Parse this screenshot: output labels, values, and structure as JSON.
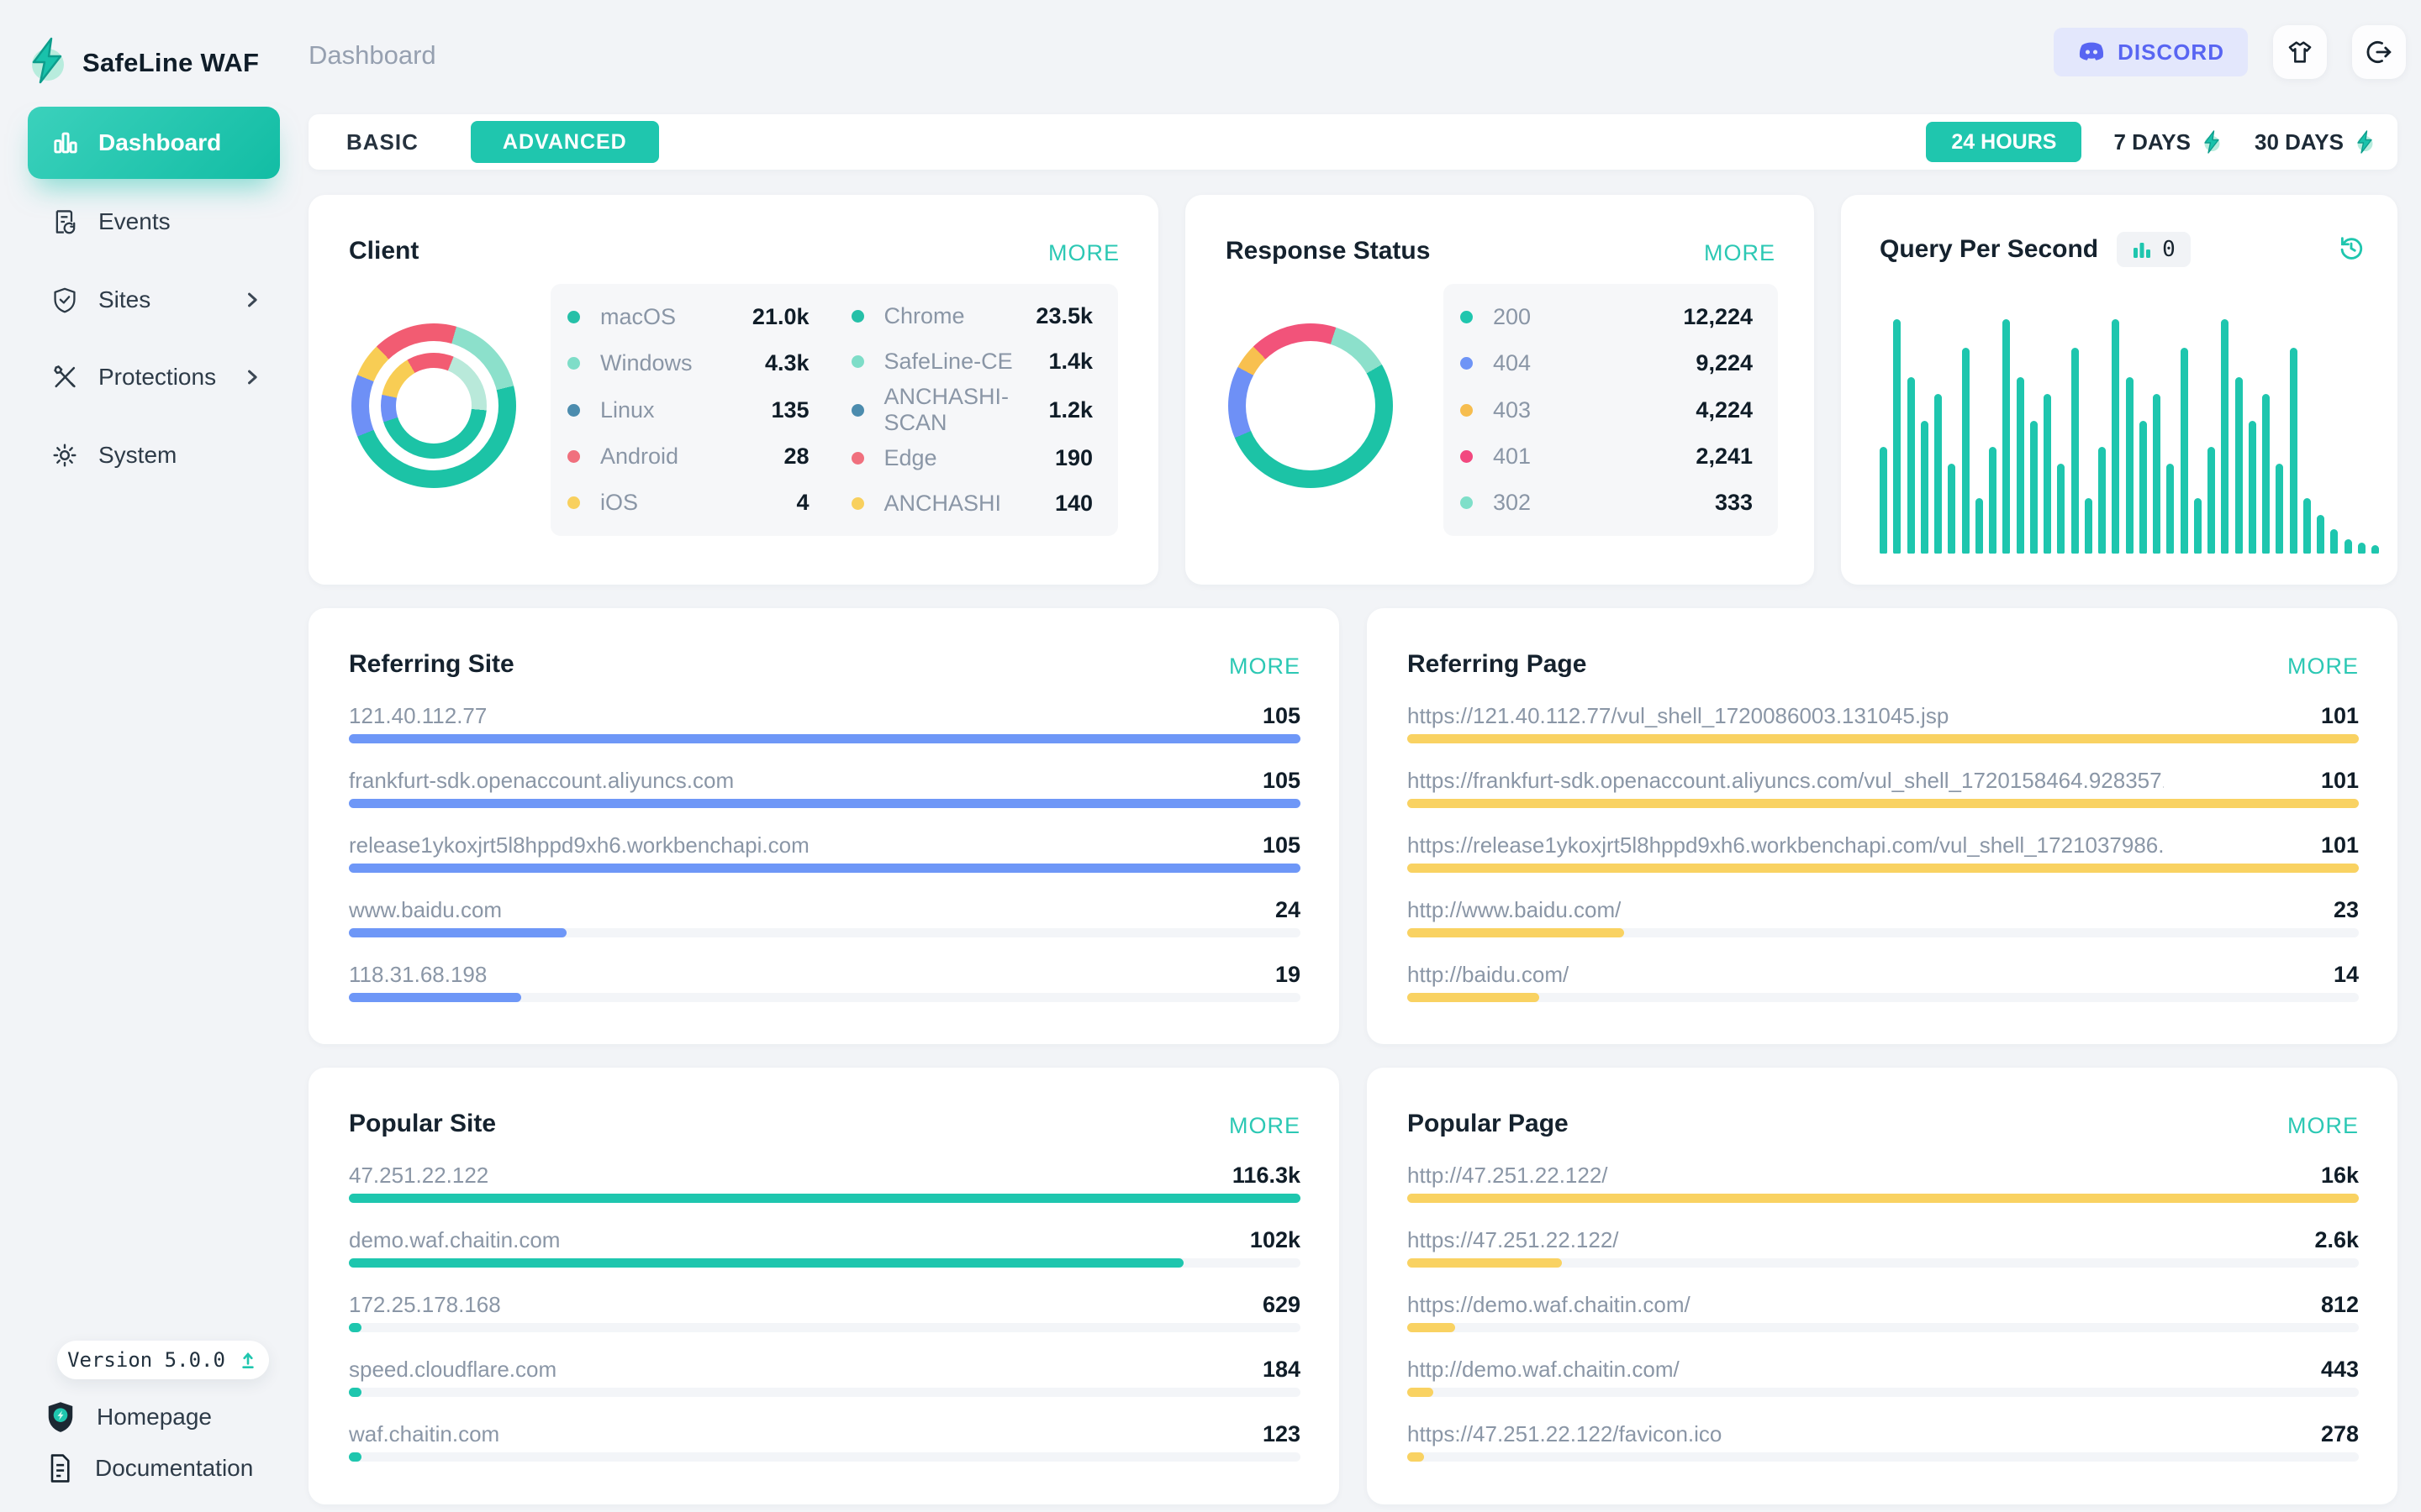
{
  "brand": {
    "name": "SafeLine WAF"
  },
  "header": {
    "page_title": "Dashboard",
    "discord_label": "DISCORD"
  },
  "sidebar": {
    "items": [
      {
        "label": "Dashboard",
        "icon": "bar-chart",
        "active": true,
        "chevron": false
      },
      {
        "label": "Events",
        "icon": "events-doc",
        "active": false,
        "chevron": false
      },
      {
        "label": "Sites",
        "icon": "shield-check",
        "active": false,
        "chevron": true
      },
      {
        "label": "Protections",
        "icon": "tools",
        "active": false,
        "chevron": true
      },
      {
        "label": "System",
        "icon": "gear",
        "active": false,
        "chevron": false
      }
    ],
    "version_label": "Version 5.0.0",
    "links": [
      {
        "label": "Homepage",
        "icon": "shield-badge"
      },
      {
        "label": "Documentation",
        "icon": "document"
      }
    ]
  },
  "toolbar": {
    "tab_basic": "BASIC",
    "tab_advanced": "ADVANCED",
    "ranges": [
      {
        "label": "24 HOURS",
        "active": true,
        "bolt": false
      },
      {
        "label": "7 DAYS",
        "active": false,
        "bolt": true
      },
      {
        "label": "30 DAYS",
        "active": false,
        "bolt": true
      }
    ]
  },
  "client_card": {
    "title": "Client",
    "more": "MORE",
    "legend_left": [
      {
        "label": "macOS",
        "value": "21.0k",
        "color": "#25c0a8"
      },
      {
        "label": "Windows",
        "value": "4.3k",
        "color": "#7eddc8"
      },
      {
        "label": "Linux",
        "value": "135",
        "color": "#4c8cae"
      },
      {
        "label": "Android",
        "value": "28",
        "color": "#f0707e"
      },
      {
        "label": "iOS",
        "value": "4",
        "color": "#f8d05e"
      }
    ],
    "legend_right": [
      {
        "label": "Chrome",
        "value": "23.5k",
        "color": "#25c0a8"
      },
      {
        "label": "SafeLine-CE",
        "value": "1.4k",
        "color": "#7eddc8"
      },
      {
        "label": "ANCHASHI-SCAN",
        "value": "1.2k",
        "color": "#4c8cae"
      },
      {
        "label": "Edge",
        "value": "190",
        "color": "#f0707e"
      },
      {
        "label": "ANCHASHI",
        "value": "140",
        "color": "#f8d05e"
      }
    ],
    "outer_segments": [
      {
        "c": "#f25c72",
        "a": 0,
        "b": 16
      },
      {
        "c": "#8ce0cb",
        "a": 16,
        "b": 76
      },
      {
        "c": "#1cc3a6",
        "a": 76,
        "b": 248
      },
      {
        "c": "#6e90f6",
        "a": 248,
        "b": 292
      },
      {
        "c": "#f8cd54",
        "a": 292,
        "b": 316
      },
      {
        "c": "#f25c72",
        "a": 316,
        "b": 360
      }
    ],
    "inner_segments": [
      {
        "c": "#f25c72",
        "a": 0,
        "b": 22
      },
      {
        "c": "#b9e9da",
        "a": 22,
        "b": 95
      },
      {
        "c": "#1cc3a6",
        "a": 95,
        "b": 252
      },
      {
        "c": "#6e90f6",
        "a": 252,
        "b": 282
      },
      {
        "c": "#f8cd54",
        "a": 282,
        "b": 330
      },
      {
        "c": "#f25c72",
        "a": 330,
        "b": 360
      }
    ]
  },
  "response_card": {
    "title": "Response Status",
    "more": "MORE",
    "legend": [
      {
        "label": "200",
        "value": "12,224",
        "color": "#1fc6ae"
      },
      {
        "label": "404",
        "value": "9,224",
        "color": "#6e94f6"
      },
      {
        "label": "403",
        "value": "4,224",
        "color": "#f6bd4f"
      },
      {
        "label": "401",
        "value": "2,241",
        "color": "#f2487f"
      },
      {
        "label": "302",
        "value": "333",
        "color": "#7fdfc9"
      }
    ],
    "segments": [
      {
        "c": "#f2537a",
        "a": 0,
        "b": 18
      },
      {
        "c": "#8ce0cb",
        "a": 18,
        "b": 60
      },
      {
        "c": "#1cc3a6",
        "a": 60,
        "b": 247
      },
      {
        "c": "#6e90f6",
        "a": 247,
        "b": 298
      },
      {
        "c": "#f8c04f",
        "a": 298,
        "b": 316
      },
      {
        "c": "#f2537a",
        "a": 316,
        "b": 360
      }
    ]
  },
  "qps_card": {
    "title": "Query Per Second",
    "badge_value": "0",
    "bars_percent": [
      44,
      97,
      73,
      55,
      66,
      37,
      85,
      23,
      44,
      97,
      73,
      55,
      66,
      37,
      85,
      23,
      44,
      97,
      73,
      55,
      66,
      37,
      85,
      23,
      44,
      97,
      73,
      55,
      66,
      37,
      85,
      23,
      16,
      10,
      6,
      4.5,
      3.5
    ]
  },
  "list_cards": [
    {
      "title": "Referring Site",
      "more": "MORE",
      "bar_color": "#6e97f7",
      "max": 105,
      "rows": [
        {
          "label": "121.40.112.77",
          "num": 105,
          "value": "105"
        },
        {
          "label": "frankfurt-sdk.openaccount.aliyuncs.com",
          "num": 105,
          "value": "105"
        },
        {
          "label": "release1ykoxjrt5l8hppd9xh6.workbenchapi.com",
          "num": 105,
          "value": "105"
        },
        {
          "label": "www.baidu.com",
          "num": 24,
          "value": "24"
        },
        {
          "label": "118.31.68.198",
          "num": 19,
          "value": "19"
        }
      ]
    },
    {
      "title": "Referring Page",
      "more": "MORE",
      "bar_color": "#f9d262",
      "max": 101,
      "rows": [
        {
          "label": "https://121.40.112.77/vul_shell_1720086003.131045.jsp",
          "num": 101,
          "value": "101"
        },
        {
          "label": "https://frankfurt-sdk.openaccount.aliyuncs.com/vul_shell_1720158464.9283571...",
          "num": 101,
          "value": "101"
        },
        {
          "label": "https://release1ykoxjrt5l8hppd9xh6.workbenchapi.com/vul_shell_1721037986...",
          "num": 101,
          "value": "101"
        },
        {
          "label": "http://www.baidu.com/",
          "num": 23,
          "value": "23"
        },
        {
          "label": "http://baidu.com/",
          "num": 14,
          "value": "14"
        }
      ]
    },
    {
      "title": "Popular Site",
      "more": "MORE",
      "bar_color": "#1ec6ae",
      "max": 116300,
      "rows": [
        {
          "label": "47.251.22.122",
          "num": 116300,
          "value": "116.3k"
        },
        {
          "label": "demo.waf.chaitin.com",
          "num": 102000,
          "value": "102k"
        },
        {
          "label": "172.25.178.168",
          "num": 629,
          "value": "629"
        },
        {
          "label": "speed.cloudflare.com",
          "num": 184,
          "value": "184"
        },
        {
          "label": "waf.chaitin.com",
          "num": 123,
          "value": "123"
        }
      ]
    },
    {
      "title": "Popular Page",
      "more": "MORE",
      "bar_color": "#f9d262",
      "max": 16000,
      "rows": [
        {
          "label": "http://47.251.22.122/",
          "num": 16000,
          "value": "16k"
        },
        {
          "label": "https://47.251.22.122/",
          "num": 2600,
          "value": "2.6k"
        },
        {
          "label": "https://demo.waf.chaitin.com/",
          "num": 812,
          "value": "812"
        },
        {
          "label": "http://demo.waf.chaitin.com/",
          "num": 443,
          "value": "443"
        },
        {
          "label": "https://47.251.22.122/favicon.ico",
          "num": 278,
          "value": "278"
        }
      ]
    }
  ],
  "chart_data": [
    {
      "type": "pie",
      "title": "Client (outer: OS, inner: agent)",
      "series": [
        {
          "name": "os",
          "labels": [
            "macOS",
            "Windows",
            "Linux",
            "Android",
            "iOS"
          ],
          "values": [
            21000,
            4300,
            135,
            28,
            4
          ]
        },
        {
          "name": "agent",
          "labels": [
            "Chrome",
            "SafeLine-CE",
            "ANCHASHI-SCAN",
            "Edge",
            "ANCHASHI"
          ],
          "values": [
            23500,
            1400,
            1200,
            190,
            140
          ]
        }
      ],
      "legend_position": "right"
    },
    {
      "type": "pie",
      "title": "Response Status",
      "labels": [
        "200",
        "404",
        "403",
        "401",
        "302"
      ],
      "values": [
        12224,
        9224,
        4224,
        2241,
        333
      ],
      "legend_position": "right"
    },
    {
      "type": "bar",
      "title": "Query Per Second",
      "current_value": 0,
      "ylabel": "",
      "xlabel": "",
      "values_percent_of_max": [
        44,
        97,
        73,
        55,
        66,
        37,
        85,
        23,
        44,
        97,
        73,
        55,
        66,
        37,
        85,
        23,
        44,
        97,
        73,
        55,
        66,
        37,
        85,
        23,
        44,
        97,
        73,
        55,
        66,
        37,
        85,
        23,
        16,
        10,
        6,
        4.5,
        3.5
      ],
      "grid": false
    }
  ]
}
